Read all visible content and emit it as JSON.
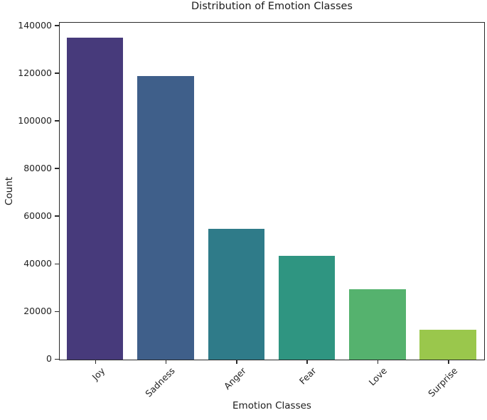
{
  "chart_data": {
    "type": "bar",
    "title": "Distribution of Emotion Classes",
    "xlabel": "Emotion Classes",
    "ylabel": "Count",
    "categories": [
      "Joy",
      "Sadness",
      "Anger",
      "Fear",
      "Love",
      "Surprise"
    ],
    "values": [
      135000,
      119000,
      55000,
      43500,
      29500,
      12500
    ],
    "bar_colors": [
      "#473a7b",
      "#3f5f8a",
      "#2f7b89",
      "#2f9581",
      "#55b26e",
      "#9ac74c"
    ],
    "yticks": [
      0,
      20000,
      40000,
      60000,
      80000,
      100000,
      120000,
      140000
    ],
    "ylim": [
      0,
      141000
    ],
    "grid": false,
    "legend": null,
    "bar_width_fraction": 0.8,
    "xtick_rotation_deg": 45,
    "colors": {
      "axis": "#2a2a2a",
      "tick_text": "#222222",
      "label_text": "#1c1c1c",
      "background": "#ffffff"
    }
  }
}
